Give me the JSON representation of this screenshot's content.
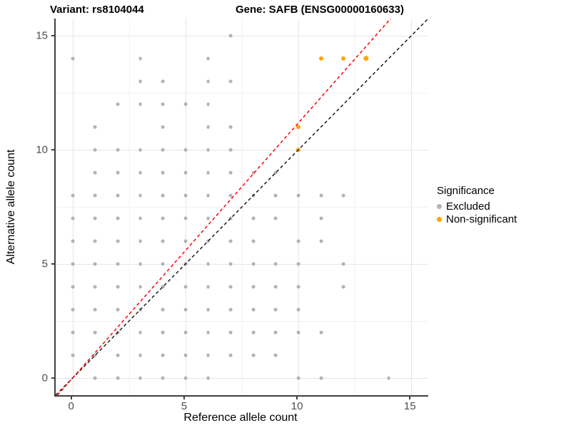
{
  "titles": {
    "variant": "Variant: rs8104044",
    "gene": "Gene: SAFB (ENSG00000160633)"
  },
  "chart_data": {
    "type": "scatter",
    "xlabel": "Reference allele count",
    "ylabel": "Alternative allele count",
    "xlim": [
      -0.75,
      15.75
    ],
    "ylim": [
      -0.75,
      15.75
    ],
    "x_ticks": [
      0,
      5,
      10,
      15
    ],
    "y_ticks": [
      0,
      5,
      10,
      15
    ],
    "x_minor": [
      2.5,
      7.5,
      12.5
    ],
    "y_minor": [
      2.5,
      7.5,
      12.5
    ],
    "grid": true,
    "colors": {
      "excluded": "#b3b3b3",
      "non_significant": "#ffa500",
      "identity_line": "#1a1a1a",
      "ratio_line": "#fe0000",
      "grid_major": "#e6e6e6",
      "grid_minor": "#f1f1f1",
      "axis_text": "#4d4d4d"
    },
    "legend": {
      "title": "Significance",
      "position": "right",
      "entries": [
        {
          "label": "Excluded",
          "color": "#b3b3b3"
        },
        {
          "label": "Non-significant",
          "color": "#ffa500"
        }
      ]
    },
    "series": [
      {
        "name": "Excluded",
        "color": "#b3b3b3",
        "radius": 2.4,
        "points": [
          [
            1,
            0
          ],
          [
            2,
            0
          ],
          [
            3,
            0
          ],
          [
            4,
            0
          ],
          [
            5,
            0
          ],
          [
            6,
            0
          ],
          [
            10,
            0
          ],
          [
            11,
            0
          ],
          [
            14,
            0
          ],
          [
            0,
            1
          ],
          [
            1,
            1
          ],
          [
            2,
            1
          ],
          [
            3,
            1
          ],
          [
            4,
            1
          ],
          [
            5,
            1
          ],
          [
            6,
            1
          ],
          [
            7,
            1
          ],
          [
            8,
            1
          ],
          [
            9,
            1
          ],
          [
            0,
            2
          ],
          [
            1,
            2
          ],
          [
            2,
            2
          ],
          [
            3,
            2
          ],
          [
            4,
            2
          ],
          [
            5,
            2
          ],
          [
            6,
            2
          ],
          [
            7,
            2
          ],
          [
            8,
            2
          ],
          [
            9,
            2
          ],
          [
            10,
            2
          ],
          [
            11,
            2
          ],
          [
            0,
            3
          ],
          [
            1,
            3
          ],
          [
            2,
            3
          ],
          [
            3,
            3
          ],
          [
            4,
            3
          ],
          [
            5,
            3
          ],
          [
            6,
            3
          ],
          [
            7,
            3
          ],
          [
            8,
            3
          ],
          [
            9,
            3
          ],
          [
            10,
            3
          ],
          [
            0,
            4
          ],
          [
            1,
            4
          ],
          [
            2,
            4
          ],
          [
            3,
            4
          ],
          [
            4,
            4
          ],
          [
            5,
            4
          ],
          [
            6,
            4
          ],
          [
            7,
            4
          ],
          [
            8,
            4
          ],
          [
            9,
            4
          ],
          [
            10,
            4
          ],
          [
            12,
            4
          ],
          [
            0,
            5
          ],
          [
            1,
            5
          ],
          [
            2,
            5
          ],
          [
            3,
            5
          ],
          [
            4,
            5
          ],
          [
            5,
            5
          ],
          [
            6,
            5
          ],
          [
            7,
            5
          ],
          [
            8,
            5
          ],
          [
            9,
            5
          ],
          [
            10,
            5
          ],
          [
            12,
            5
          ],
          [
            0,
            6
          ],
          [
            1,
            6
          ],
          [
            2,
            6
          ],
          [
            3,
            6
          ],
          [
            4,
            6
          ],
          [
            5,
            6
          ],
          [
            6,
            6
          ],
          [
            7,
            6
          ],
          [
            8,
            6
          ],
          [
            10,
            6
          ],
          [
            11,
            6
          ],
          [
            0,
            7
          ],
          [
            1,
            7
          ],
          [
            2,
            7
          ],
          [
            3,
            7
          ],
          [
            4,
            7
          ],
          [
            5,
            7
          ],
          [
            6,
            7
          ],
          [
            7,
            7
          ],
          [
            8,
            7
          ],
          [
            9,
            7
          ],
          [
            11,
            7
          ],
          [
            0,
            8
          ],
          [
            1,
            8
          ],
          [
            2,
            8
          ],
          [
            3,
            8
          ],
          [
            4,
            8
          ],
          [
            5,
            8
          ],
          [
            6,
            8
          ],
          [
            7,
            8
          ],
          [
            8,
            8
          ],
          [
            9,
            8
          ],
          [
            10,
            8
          ],
          [
            11,
            8
          ],
          [
            12,
            8
          ],
          [
            1,
            9
          ],
          [
            2,
            9
          ],
          [
            3,
            9
          ],
          [
            4,
            9
          ],
          [
            5,
            9
          ],
          [
            6,
            9
          ],
          [
            7,
            9
          ],
          [
            8,
            9
          ],
          [
            9,
            9
          ],
          [
            1,
            10
          ],
          [
            2,
            10
          ],
          [
            3,
            10
          ],
          [
            4,
            10
          ],
          [
            5,
            10
          ],
          [
            6,
            10
          ],
          [
            7,
            10
          ],
          [
            1,
            11
          ],
          [
            4,
            11
          ],
          [
            6,
            11
          ],
          [
            7,
            11
          ],
          [
            2,
            12
          ],
          [
            3,
            12
          ],
          [
            4,
            12
          ],
          [
            5,
            12
          ],
          [
            6,
            12
          ],
          [
            3,
            13
          ],
          [
            4,
            13
          ],
          [
            6,
            13
          ],
          [
            7,
            13
          ],
          [
            0,
            14
          ],
          [
            3,
            14
          ],
          [
            6,
            14
          ],
          [
            7,
            15
          ]
        ]
      },
      {
        "name": "Non-significant",
        "color": "#ffa500",
        "radius": 3,
        "points": [
          [
            10,
            10
          ],
          [
            10,
            11
          ],
          [
            11,
            14
          ],
          [
            12,
            14
          ],
          [
            13,
            14,
            3.6
          ]
        ]
      }
    ],
    "lines": [
      {
        "name": "identity-line",
        "style": "dashed",
        "color": "#1a1a1a",
        "slope": 1,
        "intercept": 0
      },
      {
        "name": "ratio-line",
        "style": "dashed",
        "color": "#fe0000",
        "slope": 1.118,
        "intercept": 0
      }
    ]
  }
}
